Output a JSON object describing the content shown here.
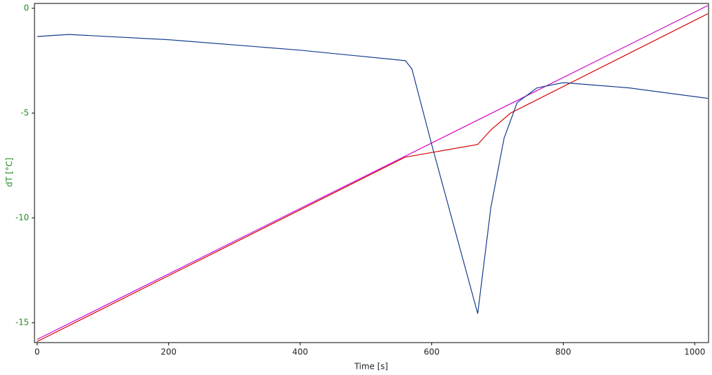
{
  "chart_data": {
    "type": "line",
    "x_label": "Time [s]",
    "y_label": "dT [°C]",
    "xlim": [
      -4,
      1021
    ],
    "ylim": [
      -15.95,
      0.23
    ],
    "xticks": [
      0,
      200,
      400,
      600,
      800,
      1000
    ],
    "yticks": [
      0,
      -5,
      -10,
      -15
    ],
    "series": [
      {
        "color": "#d00000",
        "x": [
          0,
          560,
          670,
          690,
          720,
          1020
        ],
        "values": [
          -15.9,
          -7.1,
          -6.5,
          -5.8,
          -5.0,
          -0.26
        ]
      },
      {
        "color": "#cc00cc",
        "x": [
          0,
          1020
        ],
        "values": [
          -15.8,
          0.13
        ]
      },
      {
        "color": "#123c8c",
        "x": [
          0,
          48,
          200,
          400,
          560,
          570,
          600,
          670,
          690,
          710,
          730,
          760,
          800,
          900,
          1020
        ],
        "values": [
          -1.35,
          -1.25,
          -1.5,
          -2.0,
          -2.5,
          -2.9,
          -6.5,
          -14.57,
          -9.5,
          -6.2,
          -4.5,
          -3.8,
          -3.55,
          -3.8,
          -4.3
        ]
      }
    ]
  }
}
